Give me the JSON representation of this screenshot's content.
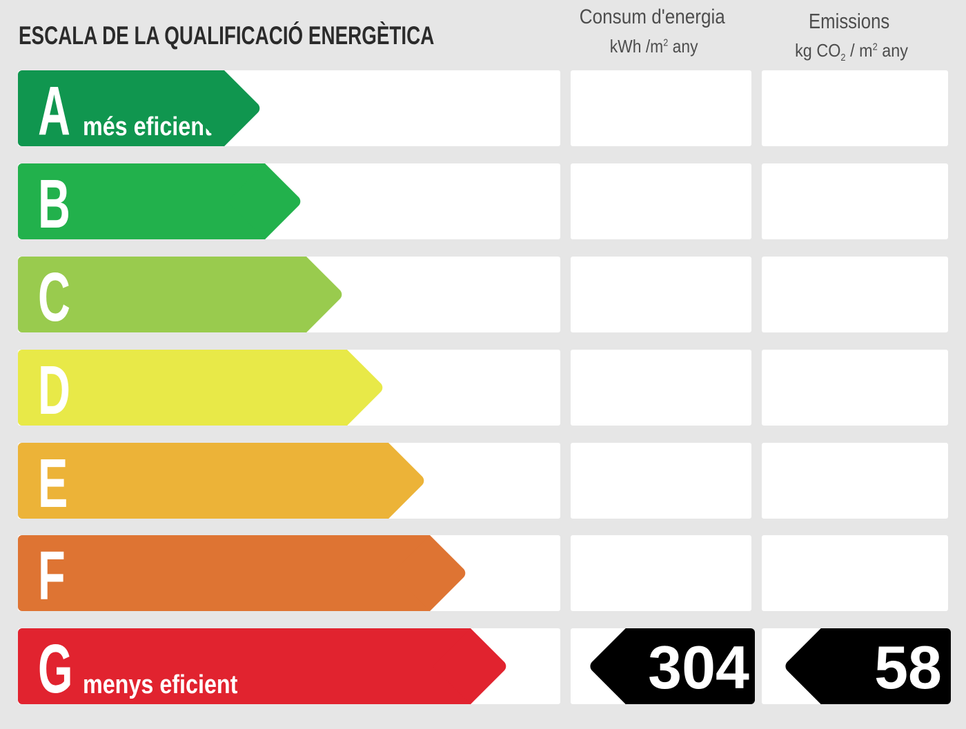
{
  "title": "ESCALA DE LA QUALIFICACIÓ ENERGÈTICA",
  "consumption": {
    "title": "Consum d'energia",
    "unit": "kWh /m",
    "unit_exponent": "2",
    "unit_period": "any"
  },
  "emissions": {
    "title": "Emissions",
    "unit_mass": "kg CO",
    "unit_subscript": "2",
    "unit_area": "/ m",
    "unit_exponent": "2",
    "unit_period": "any"
  },
  "marker_color": "#000000",
  "ratings": [
    {
      "letter": "A",
      "label": "més eficient",
      "color": "#10964f"
    },
    {
      "letter": "B",
      "color": "#22b14c"
    },
    {
      "letter": "C",
      "color": "#99cb4e"
    },
    {
      "letter": "D",
      "color": "#e8e948"
    },
    {
      "letter": "E",
      "color": "#ecb338"
    },
    {
      "letter": "F",
      "color": "#de7433"
    },
    {
      "letter": "G",
      "label": "menys eficient",
      "color": "#e1232f",
      "consumption": 304,
      "emissions": 58
    }
  ]
}
